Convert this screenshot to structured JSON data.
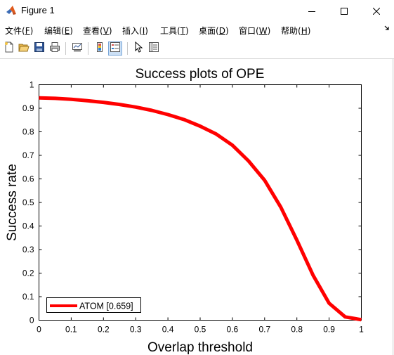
{
  "window": {
    "title": "Figure 1",
    "icon": "matlab-icon",
    "controls": [
      "minimize-icon",
      "maximize-icon",
      "close-icon"
    ]
  },
  "menu": {
    "items": [
      {
        "label": "文件",
        "key": "F"
      },
      {
        "label": "编辑",
        "key": "E"
      },
      {
        "label": "查看",
        "key": "V"
      },
      {
        "label": "插入",
        "key": "I"
      },
      {
        "label": "工具",
        "key": "T"
      },
      {
        "label": "桌面",
        "key": "D"
      },
      {
        "label": "窗口",
        "key": "W"
      },
      {
        "label": "帮助",
        "key": "H"
      }
    ],
    "overflow_icon": "dock-arrow-icon"
  },
  "toolbar": {
    "buttons": [
      "new-figure-icon",
      "open-file-icon",
      "save-icon",
      "print-icon",
      "link-plot-icon",
      "insert-colorbar-icon",
      "insert-legend-icon",
      "edit-plot-icon",
      "property-inspector-icon"
    ],
    "pressed": "insert-legend-icon"
  },
  "chart_data": {
    "type": "line",
    "title": "Success plots of OPE",
    "xlabel": "Overlap threshold",
    "ylabel": "Success rate",
    "xlim": [
      0,
      1
    ],
    "ylim": [
      0,
      1
    ],
    "xticks": [
      "0",
      "0.1",
      "0.2",
      "0.3",
      "0.4",
      "0.5",
      "0.6",
      "0.7",
      "0.8",
      "0.9",
      "1"
    ],
    "yticks": [
      "0",
      "0.1",
      "0.2",
      "0.3",
      "0.4",
      "0.5",
      "0.6",
      "0.7",
      "0.8",
      "0.9",
      "1"
    ],
    "grid": false,
    "legend_position": "bottom-left",
    "series": [
      {
        "name": "ATOM [0.659]",
        "color": "#ff0000",
        "x": [
          0,
          0.05,
          0.1,
          0.15,
          0.2,
          0.25,
          0.3,
          0.35,
          0.4,
          0.45,
          0.5,
          0.55,
          0.6,
          0.65,
          0.7,
          0.75,
          0.8,
          0.85,
          0.9,
          0.95,
          1
        ],
        "y": [
          0.944,
          0.942,
          0.938,
          0.932,
          0.925,
          0.916,
          0.905,
          0.891,
          0.873,
          0.852,
          0.824,
          0.79,
          0.743,
          0.676,
          0.594,
          0.48,
          0.34,
          0.192,
          0.072,
          0.014,
          0.002
        ]
      }
    ]
  }
}
